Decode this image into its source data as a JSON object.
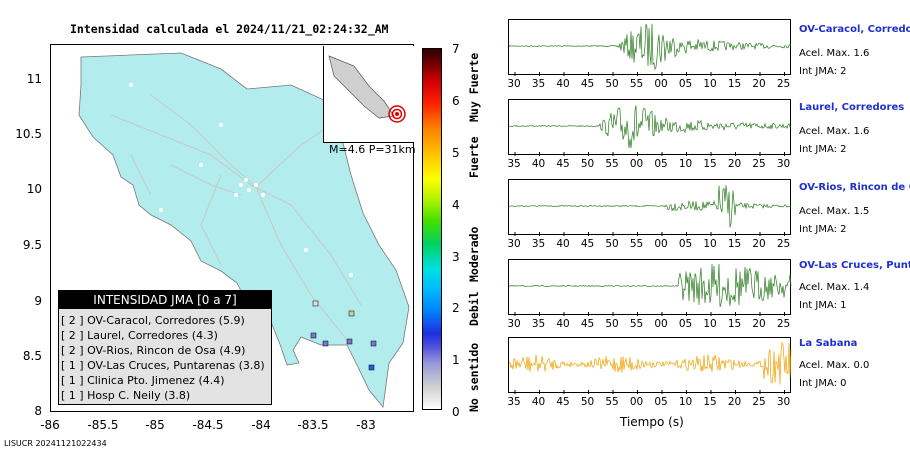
{
  "title": "Intensidad calculada el 2024/11/21_02:24:32_AM",
  "map": {
    "y_ticks": [
      "11",
      "10.5",
      "10",
      "9.5",
      "9",
      "8.5",
      "8"
    ],
    "x_ticks": [
      "-86",
      "-85.5",
      "-85",
      "-84.5",
      "-84",
      "-83.5",
      "-83"
    ],
    "inset_text": "M=4.6 P=31km"
  },
  "legend": {
    "title": "INTENSIDAD JMA [0 a 7]",
    "items": [
      "[ 2 ]  OV-Caracol, Corredores (5.9)",
      "[ 2 ]  Laurel, Corredores (4.3)",
      "[ 2 ]  OV-Rios, Rincon de Osa (4.9)",
      "[ 1 ]  OV-Las Cruces, Puntarenas (3.8)",
      "[ 1 ]  Clinica Pto. Jimenez (4.4)",
      "[ 1 ]  Hosp C. Neily (3.8)"
    ]
  },
  "colorbar": {
    "numbers": [
      "7",
      "6",
      "5",
      "4",
      "3",
      "2",
      "1",
      "0"
    ],
    "words": [
      "Muy Fuerte",
      "Fuerte",
      "Moderado",
      "Debil",
      "No sentido"
    ]
  },
  "stations": [
    {
      "name": "OV-Caracol, Corredore",
      "acel": "Acel. Max. 1.6",
      "jma": "Int JMA: 2",
      "ticks": [
        "30",
        "35",
        "40",
        "45",
        "50",
        "55",
        "00",
        "05",
        "10",
        "15",
        "20",
        "25"
      ],
      "color": "#2a7a1f"
    },
    {
      "name": "Laurel, Corredores",
      "acel": "Acel. Max. 1.6",
      "jma": "Int JMA: 2",
      "ticks": [
        "35",
        "40",
        "45",
        "50",
        "55",
        "00",
        "05",
        "10",
        "15",
        "20",
        "25",
        "30"
      ],
      "color": "#2a7a1f"
    },
    {
      "name": "OV-Rios, Rincon de Os",
      "acel": "Acel. Max. 1.5",
      "jma": "Int JMA: 2",
      "ticks": [
        "30",
        "35",
        "40",
        "45",
        "50",
        "55",
        "00",
        "05",
        "10",
        "15",
        "20",
        "25"
      ],
      "color": "#2a7a1f"
    },
    {
      "name": "OV-Las Cruces, Puntar",
      "acel": "Acel. Max. 1.4",
      "jma": "Int JMA: 1",
      "ticks": [
        "30",
        "35",
        "40",
        "45",
        "50",
        "55",
        "00",
        "05",
        "10",
        "15",
        "20",
        "25"
      ],
      "color": "#2a7a1f"
    },
    {
      "name": "La Sabana",
      "acel": "Acel. Max. 0.0",
      "jma": "Int JMA: 0",
      "ticks": [
        "35",
        "40",
        "45",
        "50",
        "55",
        "00",
        "05",
        "10",
        "15",
        "20",
        "25",
        "30"
      ],
      "color": "#f0a000"
    }
  ],
  "xaxis_title": "Tiempo (s)",
  "footer": "LISUCR 20241121022434"
}
